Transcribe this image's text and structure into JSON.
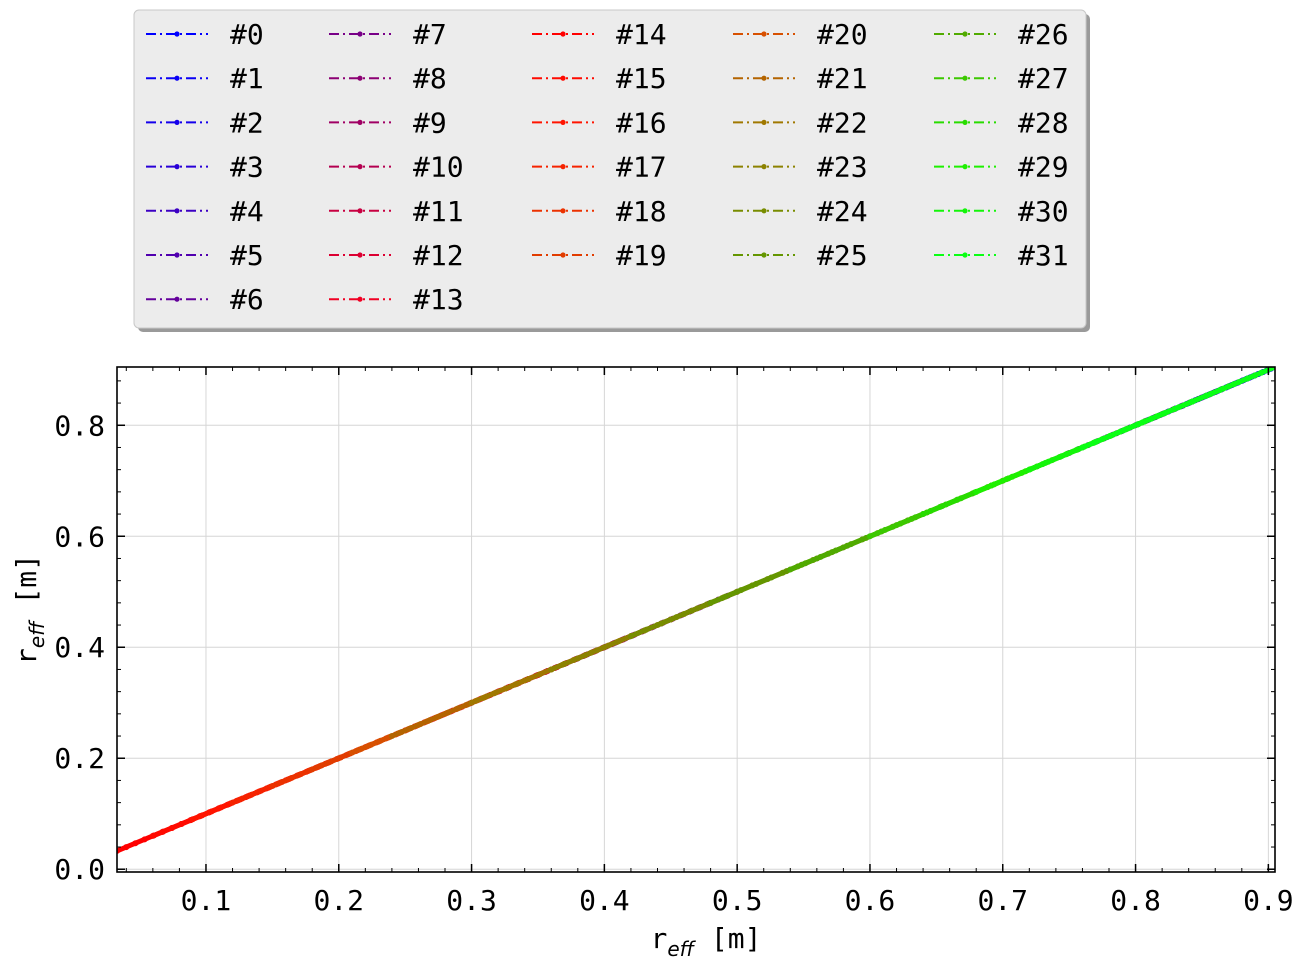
{
  "chart_data": {
    "type": "line",
    "title": "",
    "xlabel": "r",
    "xlabel_sub": "eff",
    "xlabel_unit": " [m]",
    "ylabel": "r",
    "ylabel_sub": "eff",
    "ylabel_unit": " [m]",
    "xlim": [
      0.033,
      0.905
    ],
    "ylim": [
      -0.005,
      0.905
    ],
    "xticks": [
      "0.1",
      "0.2",
      "0.3",
      "0.4",
      "0.5",
      "0.6",
      "0.7",
      "0.8",
      "0.9"
    ],
    "yticks": [
      "0.0",
      "0.2",
      "0.4",
      "0.6",
      "0.8"
    ],
    "grid": true,
    "legend_position": "above-plot",
    "legend_columns": 5,
    "series": [
      {
        "name": "#0",
        "color": "#0000ff",
        "x": [
          0.862,
          0.905
        ],
        "y": [
          0.862,
          0.905
        ]
      },
      {
        "name": "#1",
        "color": "#0a00f5",
        "x": [
          0.845,
          0.9
        ],
        "y": [
          0.845,
          0.9
        ]
      },
      {
        "name": "#2",
        "color": "#1400eb",
        "x": [
          0.83,
          0.89
        ],
        "y": [
          0.83,
          0.89
        ]
      },
      {
        "name": "#3",
        "color": "#2800d7",
        "x": [
          0.81,
          0.88
        ],
        "y": [
          0.81,
          0.88
        ]
      },
      {
        "name": "#4",
        "color": "#3c00c3",
        "x": [
          0.79,
          0.87
        ],
        "y": [
          0.79,
          0.87
        ]
      },
      {
        "name": "#5",
        "color": "#5000af",
        "x": [
          0.77,
          0.86
        ],
        "y": [
          0.77,
          0.86
        ]
      },
      {
        "name": "#6",
        "color": "#64009b",
        "x": [
          0.75,
          0.85
        ],
        "y": [
          0.75,
          0.85
        ]
      },
      {
        "name": "#7",
        "color": "#780087",
        "x": [
          0.4,
          0.5
        ],
        "y": [
          0.4,
          0.5
        ]
      },
      {
        "name": "#8",
        "color": "#8c0073",
        "x": [
          0.38,
          0.48
        ],
        "y": [
          0.38,
          0.48
        ]
      },
      {
        "name": "#9",
        "color": "#a00064",
        "x": [
          0.35,
          0.45
        ],
        "y": [
          0.35,
          0.45
        ]
      },
      {
        "name": "#10",
        "color": "#b40050",
        "x": [
          0.32,
          0.42
        ],
        "y": [
          0.32,
          0.42
        ]
      },
      {
        "name": "#11",
        "color": "#c80041",
        "x": [
          0.3,
          0.4
        ],
        "y": [
          0.3,
          0.4
        ]
      },
      {
        "name": "#12",
        "color": "#dc0032",
        "x": [
          0.27,
          0.37
        ],
        "y": [
          0.27,
          0.37
        ]
      },
      {
        "name": "#13",
        "color": "#f00023",
        "x": [
          0.25,
          0.35
        ],
        "y": [
          0.25,
          0.35
        ]
      },
      {
        "name": "#14",
        "color": "#ff0000",
        "x": [
          0.033,
          0.13
        ],
        "y": [
          0.033,
          0.13
        ]
      },
      {
        "name": "#15",
        "color": "#ff0a00",
        "x": [
          0.06,
          0.16
        ],
        "y": [
          0.06,
          0.16
        ]
      },
      {
        "name": "#16",
        "color": "#ff1400",
        "x": [
          0.09,
          0.19
        ],
        "y": [
          0.09,
          0.19
        ]
      },
      {
        "name": "#17",
        "color": "#f52300",
        "x": [
          0.12,
          0.22
        ],
        "y": [
          0.12,
          0.22
        ]
      },
      {
        "name": "#18",
        "color": "#eb3200",
        "x": [
          0.15,
          0.25
        ],
        "y": [
          0.15,
          0.25
        ]
      },
      {
        "name": "#19",
        "color": "#e13c00",
        "x": [
          0.18,
          0.28
        ],
        "y": [
          0.18,
          0.28
        ]
      },
      {
        "name": "#20",
        "color": "#d75000",
        "x": [
          0.21,
          0.31
        ],
        "y": [
          0.21,
          0.31
        ]
      },
      {
        "name": "#21",
        "color": "#b46400",
        "x": [
          0.24,
          0.34
        ],
        "y": [
          0.24,
          0.34
        ]
      },
      {
        "name": "#22",
        "color": "#a07800",
        "x": [
          0.3,
          0.42
        ],
        "y": [
          0.3,
          0.42
        ]
      },
      {
        "name": "#23",
        "color": "#8c8200",
        "x": [
          0.36,
          0.5
        ],
        "y": [
          0.36,
          0.5
        ]
      },
      {
        "name": "#24",
        "color": "#788c00",
        "x": [
          0.42,
          0.58
        ],
        "y": [
          0.42,
          0.58
        ]
      },
      {
        "name": "#25",
        "color": "#649600",
        "x": [
          0.48,
          0.64
        ],
        "y": [
          0.48,
          0.64
        ]
      },
      {
        "name": "#26",
        "color": "#50aa00",
        "x": [
          0.54,
          0.7
        ],
        "y": [
          0.54,
          0.7
        ]
      },
      {
        "name": "#27",
        "color": "#3cc800",
        "x": [
          0.6,
          0.76
        ],
        "y": [
          0.6,
          0.76
        ]
      },
      {
        "name": "#28",
        "color": "#28dc00",
        "x": [
          0.64,
          0.82
        ],
        "y": [
          0.64,
          0.82
        ]
      },
      {
        "name": "#29",
        "color": "#1ef000",
        "x": [
          0.68,
          0.87
        ],
        "y": [
          0.68,
          0.87
        ]
      },
      {
        "name": "#30",
        "color": "#14f50a",
        "x": [
          0.72,
          0.89
        ],
        "y": [
          0.72,
          0.89
        ]
      },
      {
        "name": "#31",
        "color": "#0aff14",
        "x": [
          0.76,
          0.905
        ],
        "y": [
          0.76,
          0.905
        ]
      }
    ]
  }
}
